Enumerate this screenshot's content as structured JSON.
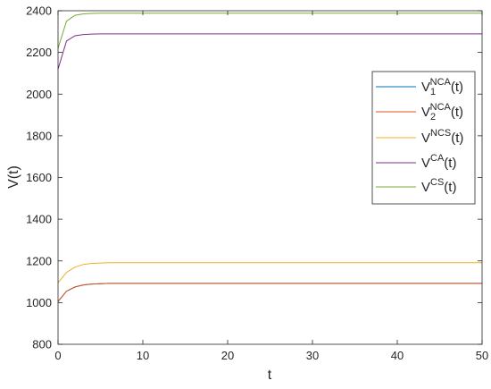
{
  "chart_data": {
    "type": "line",
    "title": "",
    "xlabel": "t",
    "ylabel": "V(t)",
    "xlim": [
      0,
      50
    ],
    "ylim": [
      800,
      2400
    ],
    "xticks": [
      0,
      10,
      20,
      30,
      40,
      50
    ],
    "yticks": [
      800,
      1000,
      1200,
      1400,
      1600,
      1800,
      2000,
      2200,
      2400
    ],
    "grid": false,
    "legend_position": "right",
    "series": [
      {
        "name": "V1NCA(t)",
        "legend": {
          "base": "V",
          "sub": "1",
          "sup": "NCA",
          "tail": "(t)"
        },
        "color": "#0072BD",
        "x": [
          0,
          1,
          2,
          3,
          4,
          5,
          6,
          8,
          10,
          20,
          30,
          40,
          50
        ],
        "y": [
          1005,
          1055,
          1075,
          1085,
          1089,
          1091,
          1092,
          1092,
          1092,
          1092,
          1092,
          1092,
          1092
        ]
      },
      {
        "name": "V2NCA(t)",
        "legend": {
          "base": "V",
          "sub": "2",
          "sup": "NCA",
          "tail": "(t)"
        },
        "color": "#D95319",
        "x": [
          0,
          1,
          2,
          3,
          4,
          5,
          6,
          8,
          10,
          20,
          30,
          40,
          50
        ],
        "y": [
          1005,
          1055,
          1075,
          1085,
          1089,
          1091,
          1092,
          1092,
          1092,
          1092,
          1092,
          1092,
          1092
        ]
      },
      {
        "name": "VNCS(t)",
        "legend": {
          "base": "V",
          "sub": "",
          "sup": "NCS",
          "tail": "(t)"
        },
        "color": "#EDB120",
        "x": [
          0,
          1,
          2,
          3,
          4,
          5,
          6,
          8,
          10,
          20,
          30,
          40,
          50
        ],
        "y": [
          1095,
          1145,
          1170,
          1183,
          1188,
          1190,
          1191,
          1191,
          1191,
          1191,
          1191,
          1191,
          1191
        ]
      },
      {
        "name": "VCA(t)",
        "legend": {
          "base": "V",
          "sub": "",
          "sup": "CA",
          "tail": "(t)"
        },
        "color": "#7E2F8E",
        "x": [
          0,
          1,
          2,
          3,
          4,
          5,
          6,
          8,
          10,
          20,
          30,
          40,
          50
        ],
        "y": [
          2120,
          2255,
          2280,
          2286,
          2288,
          2289,
          2289,
          2289,
          2289,
          2289,
          2289,
          2289,
          2289
        ]
      },
      {
        "name": "VCS(t)",
        "legend": {
          "base": "V",
          "sub": "",
          "sup": "CS",
          "tail": "(t)"
        },
        "color": "#77AC30",
        "x": [
          0,
          1,
          2,
          3,
          4,
          5,
          6,
          8,
          10,
          20,
          30,
          40,
          50
        ],
        "y": [
          2220,
          2350,
          2378,
          2385,
          2387,
          2388,
          2388,
          2388,
          2388,
          2388,
          2388,
          2388,
          2388
        ]
      }
    ]
  }
}
